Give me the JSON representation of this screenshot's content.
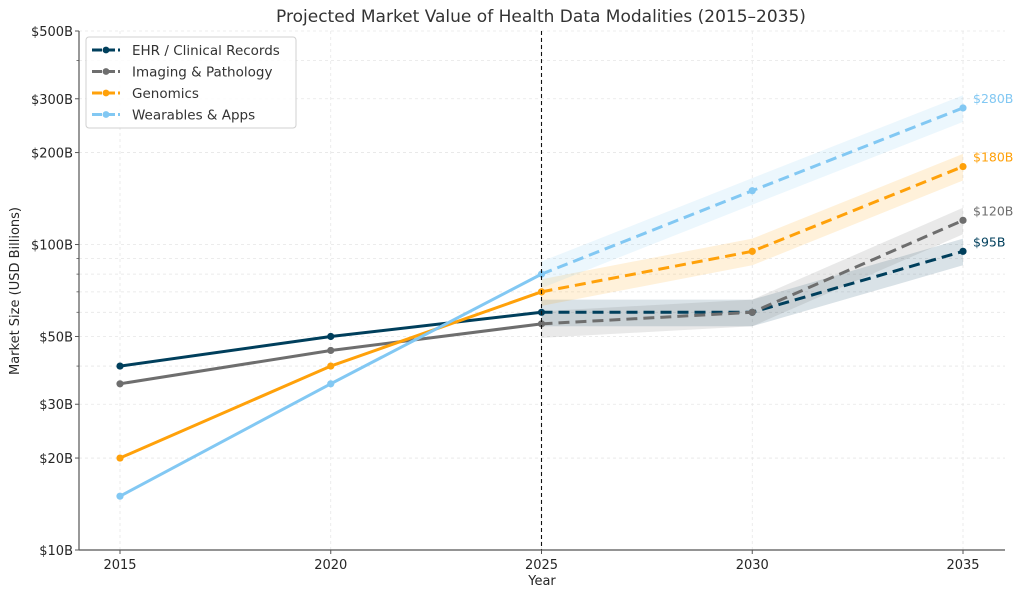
{
  "chart_data": {
    "type": "line",
    "title": "Projected Market Value of Health Data Modalities (2015–2035)",
    "xlabel": "Year",
    "ylabel": "Market Size (USD Billions)",
    "yscale": "log",
    "ylim": [
      10,
      500
    ],
    "xlim": [
      2014,
      2036
    ],
    "x": [
      2015,
      2020,
      2025,
      2030,
      2035
    ],
    "x_tick_labels": [
      "2015",
      "2020",
      "2025",
      "2030",
      "2035"
    ],
    "y_ticks": [
      10,
      20,
      30,
      50,
      100,
      200,
      300,
      500
    ],
    "y_tick_labels": [
      "$10B",
      "$20B",
      "$30B",
      "$50B",
      "$100B",
      "$200B",
      "$300B",
      "$500B"
    ],
    "y_minor_ticks": [
      40,
      60,
      70,
      80,
      90,
      400
    ],
    "grid": true,
    "forecast_start": 2025,
    "forecast_style": "dashed line with shaded ±10% band",
    "band_fraction": 0.1,
    "legend_position": "top-left",
    "series": [
      {
        "name": "EHR / Clinical Records",
        "color": "#003f5c",
        "values": [
          40,
          50,
          60,
          60,
          95
        ],
        "end_label": "$95B"
      },
      {
        "name": "Imaging & Pathology",
        "color": "#6e6e6e",
        "values": [
          35,
          45,
          55,
          60,
          120
        ],
        "end_label": "$120B"
      },
      {
        "name": "Genomics",
        "color": "#ffa10a",
        "values": [
          20,
          40,
          70,
          95,
          180
        ],
        "end_label": "$180B"
      },
      {
        "name": "Wearables & Apps",
        "color": "#82c8f3",
        "values": [
          15,
          35,
          80,
          150,
          280
        ],
        "end_label": "$280B"
      }
    ]
  }
}
